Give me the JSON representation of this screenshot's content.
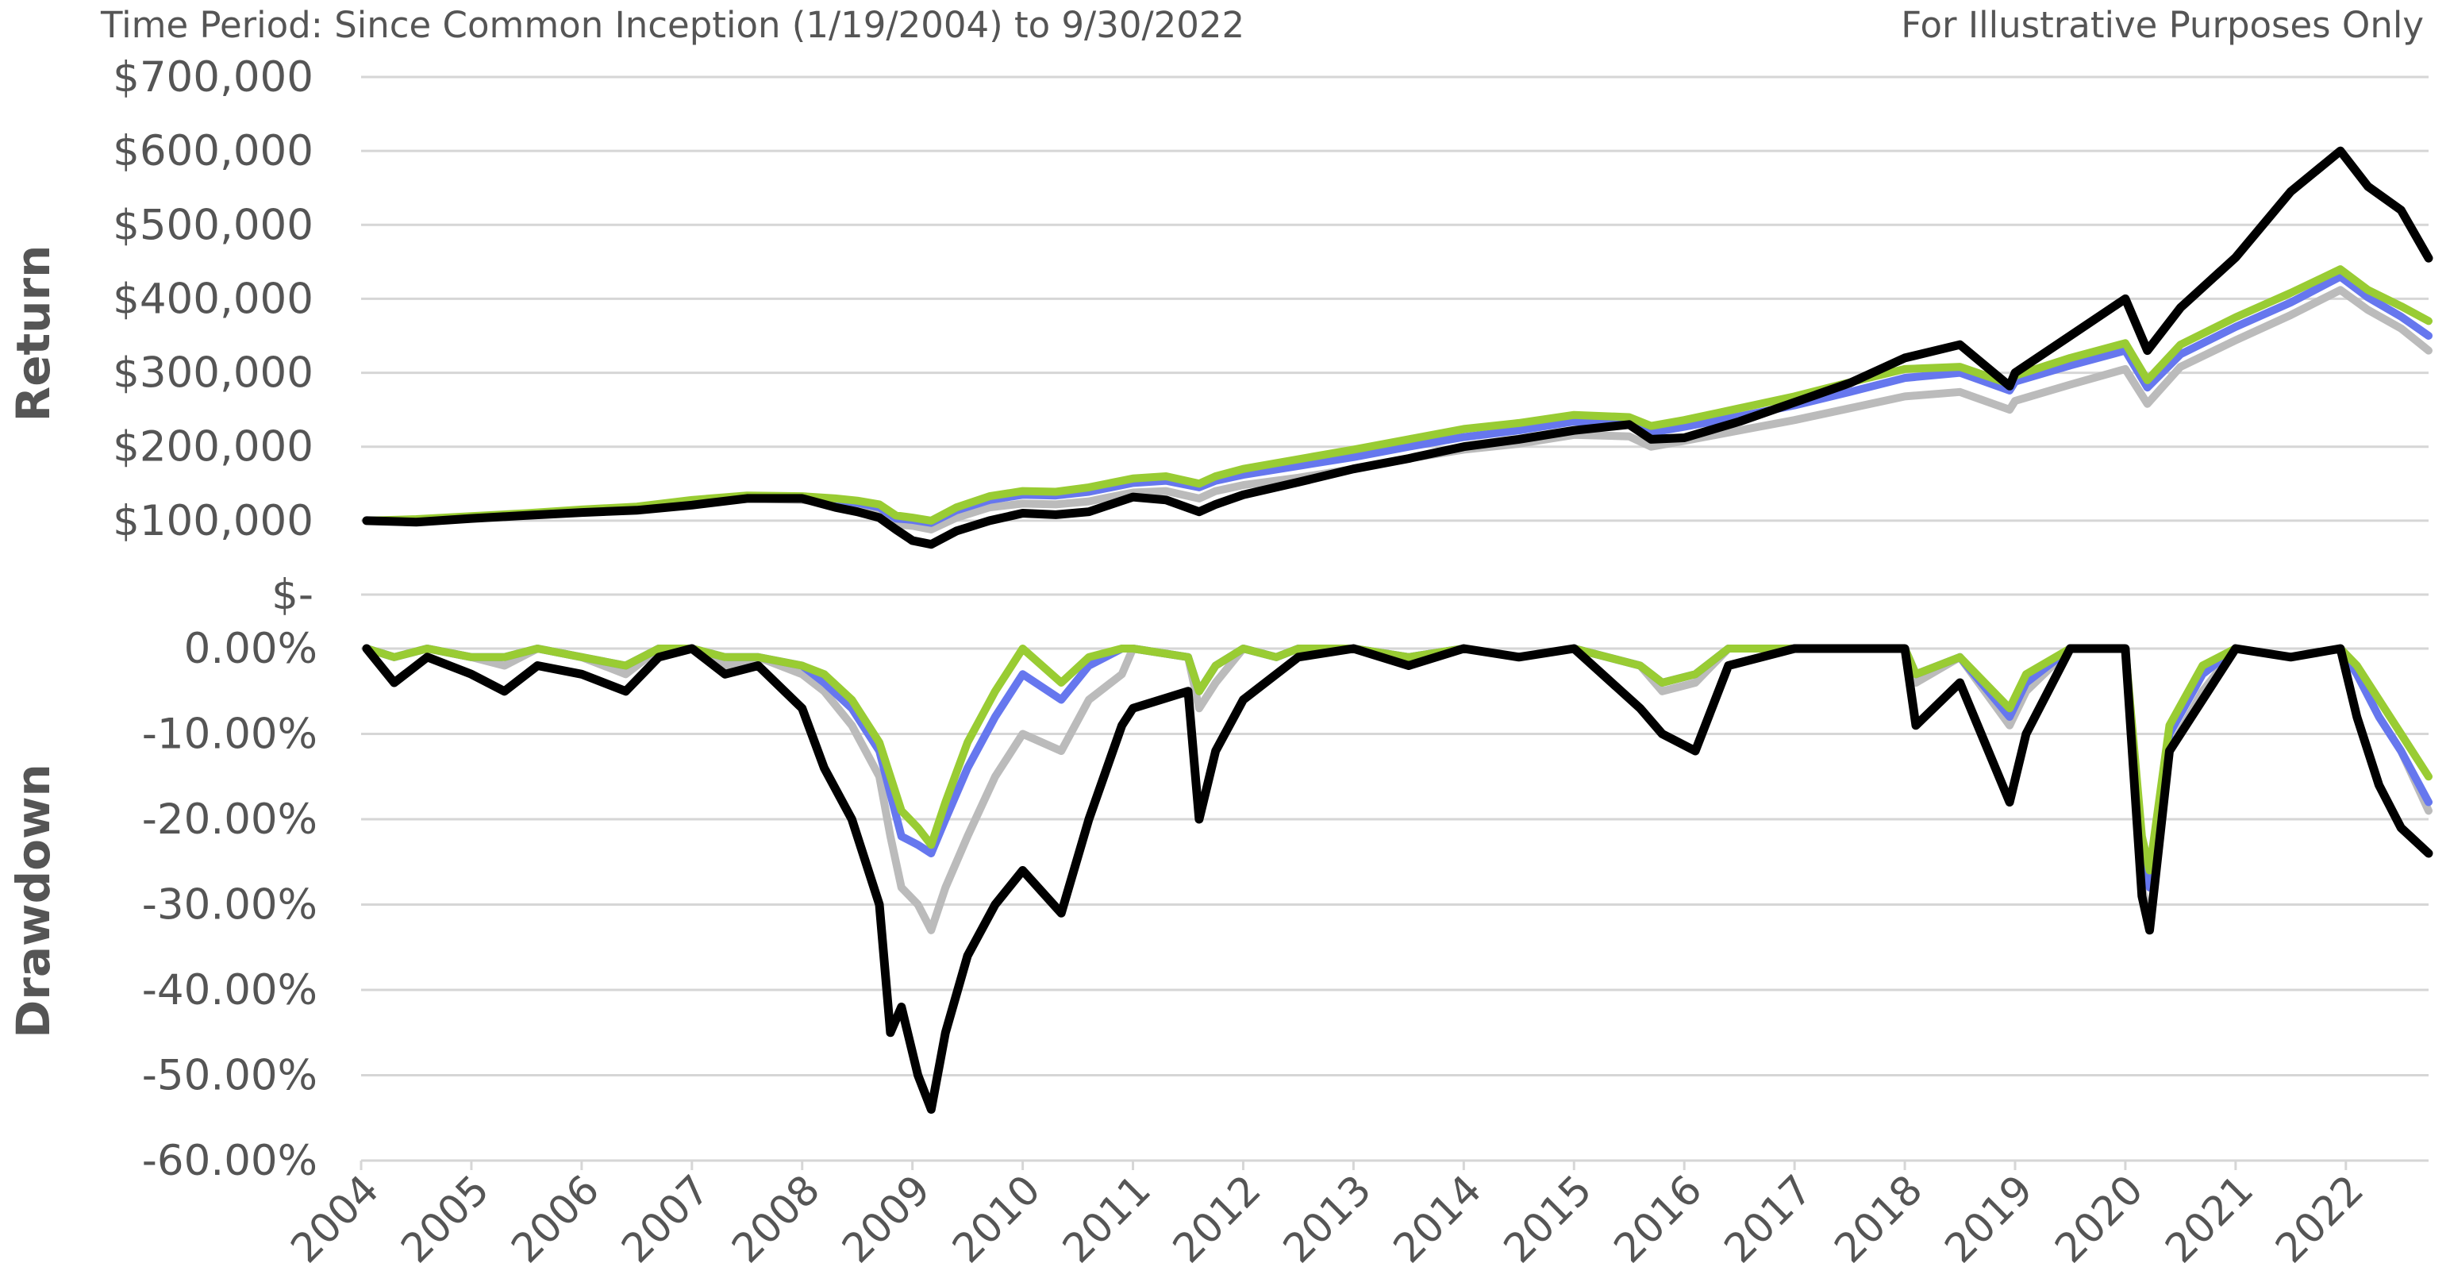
{
  "header": {
    "time_period": "Time Period: Since Common Inception (1/19/2004) to 9/30/2022",
    "disclaimer": "For Illustrative Purposes Only"
  },
  "chart_data": [
    {
      "type": "line",
      "panel": "return",
      "ylabel": "Return",
      "ylim": [
        0,
        700000
      ],
      "yticks": [
        0,
        100000,
        200000,
        300000,
        400000,
        500000,
        600000,
        700000
      ],
      "ytick_labels": [
        "$-",
        "$100,000",
        "$200,000",
        "$300,000",
        "$400,000",
        "$500,000",
        "$600,000",
        "$700,000"
      ],
      "xlim": [
        2004,
        2022.75
      ],
      "grid": true,
      "x": [
        2004.05,
        2004.5,
        2005,
        2005.5,
        2006,
        2006.5,
        2007,
        2007.5,
        2008,
        2008.3,
        2008.5,
        2008.7,
        2008.85,
        2009,
        2009.17,
        2009.4,
        2009.7,
        2010,
        2010.3,
        2010.6,
        2011,
        2011.3,
        2011.6,
        2011.75,
        2012,
        2012.5,
        2013,
        2013.5,
        2014,
        2014.5,
        2015,
        2015.5,
        2015.7,
        2016,
        2016.5,
        2017,
        2017.5,
        2018,
        2018.5,
        2018.95,
        2019,
        2019.5,
        2020,
        2020.2,
        2020.5,
        2021,
        2021.5,
        2021.95,
        2022.2,
        2022.5,
        2022.75
      ],
      "series": [
        {
          "color": "#bbbbbb",
          "values": [
            100000,
            100000,
            104000,
            108000,
            113000,
            116000,
            124000,
            130000,
            128000,
            124000,
            120000,
            112000,
            95000,
            93000,
            88000,
            104000,
            118000,
            123000,
            122000,
            126000,
            138000,
            140000,
            130000,
            140000,
            148000,
            158000,
            170000,
            184000,
            196000,
            204000,
            216000,
            214000,
            200000,
            208000,
            222000,
            236000,
            252000,
            268000,
            274000,
            250000,
            262000,
            284000,
            305000,
            258000,
            308000,
            344000,
            378000,
            412000,
            385000,
            360000,
            330000
          ]
        },
        {
          "color": "#6677ee",
          "values": [
            100000,
            101000,
            105000,
            109000,
            114000,
            118000,
            127000,
            133000,
            132000,
            128000,
            124000,
            118000,
            103000,
            101000,
            97000,
            114000,
            128000,
            135000,
            134000,
            139000,
            151000,
            154000,
            145000,
            154000,
            162000,
            174000,
            186000,
            200000,
            213000,
            222000,
            234000,
            232000,
            219000,
            227000,
            241000,
            256000,
            274000,
            293000,
            300000,
            276000,
            288000,
            310000,
            330000,
            280000,
            325000,
            362000,
            395000,
            430000,
            402000,
            376000,
            350000
          ]
        },
        {
          "color": "#99cc33",
          "values": [
            100000,
            102000,
            106000,
            110000,
            115000,
            119000,
            128000,
            134000,
            133000,
            130000,
            127000,
            122000,
            107000,
            104000,
            100000,
            118000,
            133000,
            140000,
            139000,
            145000,
            157000,
            160000,
            150000,
            160000,
            170000,
            183000,
            196000,
            210000,
            224000,
            232000,
            243000,
            240000,
            228000,
            236000,
            252000,
            268000,
            287000,
            305000,
            308000,
            285000,
            296000,
            320000,
            340000,
            290000,
            338000,
            375000,
            408000,
            440000,
            412000,
            390000,
            370000
          ]
        },
        {
          "color": "#000000",
          "values": [
            100000,
            98000,
            103000,
            107000,
            111000,
            114000,
            121000,
            130000,
            130000,
            118000,
            112000,
            104000,
            88000,
            73000,
            68000,
            86000,
            100000,
            110000,
            108000,
            112000,
            132000,
            128000,
            112000,
            122000,
            135000,
            152000,
            170000,
            184000,
            200000,
            210000,
            222000,
            230000,
            210000,
            212000,
            234000,
            260000,
            286000,
            320000,
            338000,
            282000,
            300000,
            350000,
            400000,
            330000,
            388000,
            456000,
            545000,
            600000,
            552000,
            520000,
            455000
          ]
        }
      ]
    },
    {
      "type": "line",
      "panel": "drawdown",
      "ylabel": "Drawdown",
      "ylim": [
        -60,
        0
      ],
      "yticks": [
        0,
        -10,
        -20,
        -30,
        -40,
        -50,
        -60
      ],
      "ytick_labels": [
        "0.00%",
        "-10.00%",
        "-20.00%",
        "-30.00%",
        "-40.00%",
        "-50.00%",
        "-60.00%"
      ],
      "xlim": [
        2004,
        2022.75
      ],
      "x_tick_labels": [
        "2004",
        "2005",
        "2006",
        "2007",
        "2008",
        "2009",
        "2010",
        "2011",
        "2012",
        "2013",
        "2014",
        "2015",
        "2016",
        "2017",
        "2018",
        "2019",
        "2020",
        "2021",
        "2022"
      ],
      "grid": true,
      "x": [
        2004.05,
        2004.3,
        2004.6,
        2005,
        2005.3,
        2005.6,
        2006,
        2006.4,
        2006.7,
        2007,
        2007.3,
        2007.6,
        2008,
        2008.2,
        2008.45,
        2008.7,
        2008.8,
        2008.9,
        2009.05,
        2009.17,
        2009.3,
        2009.5,
        2009.75,
        2010,
        2010.35,
        2010.6,
        2010.9,
        2011,
        2011.5,
        2011.6,
        2011.75,
        2012,
        2012.3,
        2012.5,
        2013,
        2013.5,
        2014,
        2014.5,
        2015,
        2015.6,
        2015.8,
        2016.1,
        2016.4,
        2017,
        2017.5,
        2018.0,
        2018.1,
        2018.5,
        2018.95,
        2019.1,
        2019.5,
        2020.0,
        2020.15,
        2020.22,
        2020.4,
        2020.7,
        2021,
        2021.5,
        2021.95,
        2022.1,
        2022.3,
        2022.5,
        2022.75
      ],
      "series": [
        {
          "color": "#bbbbbb",
          "values": [
            0,
            -1,
            0,
            -1,
            -2,
            0,
            -1,
            -3,
            0,
            0,
            -2,
            -1,
            -3,
            -5,
            -9,
            -15,
            -22,
            -28,
            -30,
            -33,
            -28,
            -22,
            -15,
            -10,
            -12,
            -6,
            -3,
            0,
            -1,
            -7,
            -4,
            0,
            -1,
            0,
            0,
            -1,
            0,
            -1,
            0,
            -2,
            -5,
            -4,
            0,
            0,
            0,
            0,
            -4,
            -1,
            -9,
            -5,
            0,
            0,
            -28,
            -32,
            -12,
            -5,
            0,
            -1,
            0,
            -3,
            -8,
            -12,
            -19
          ]
        },
        {
          "color": "#6677ee",
          "values": [
            0,
            -1,
            0,
            -1,
            -1,
            0,
            -1,
            -2,
            0,
            0,
            -1,
            -1,
            -2,
            -4,
            -7,
            -12,
            -17,
            -22,
            -23,
            -24,
            -20,
            -14,
            -8,
            -3,
            -6,
            -2,
            0,
            0,
            -1,
            -5,
            -2,
            0,
            -1,
            0,
            0,
            -1,
            0,
            -1,
            0,
            -2,
            -4,
            -3,
            0,
            0,
            0,
            0,
            -3,
            -1,
            -8,
            -4,
            0,
            0,
            -24,
            -28,
            -10,
            -3,
            0,
            -1,
            0,
            -3,
            -8,
            -12,
            -18
          ]
        },
        {
          "color": "#99cc33",
          "values": [
            0,
            -1,
            0,
            -1,
            -1,
            0,
            -1,
            -2,
            0,
            0,
            -1,
            -1,
            -2,
            -3,
            -6,
            -11,
            -15,
            -19,
            -21,
            -23,
            -18,
            -11,
            -5,
            0,
            -4,
            -1,
            0,
            0,
            -1,
            -5,
            -2,
            0,
            -1,
            0,
            0,
            -1,
            0,
            -1,
            0,
            -2,
            -4,
            -3,
            0,
            0,
            0,
            0,
            -3,
            -1,
            -7,
            -3,
            0,
            0,
            -22,
            -26,
            -9,
            -2,
            0,
            -1,
            0,
            -2,
            -6,
            -10,
            -15
          ]
        },
        {
          "color": "#000000",
          "values": [
            0,
            -4,
            -1,
            -3,
            -5,
            -2,
            -3,
            -5,
            -1,
            0,
            -3,
            -2,
            -7,
            -14,
            -20,
            -30,
            -45,
            -42,
            -50,
            -54,
            -45,
            -36,
            -30,
            -26,
            -31,
            -20,
            -9,
            -7,
            -5,
            -20,
            -12,
            -6,
            -3,
            -1,
            0,
            -2,
            0,
            -1,
            0,
            -7,
            -10,
            -12,
            -2,
            0,
            0,
            0,
            -9,
            -4,
            -18,
            -10,
            0,
            0,
            -29,
            -33,
            -12,
            -6,
            0,
            -1,
            0,
            -8,
            -16,
            -21,
            -24
          ]
        }
      ]
    }
  ]
}
